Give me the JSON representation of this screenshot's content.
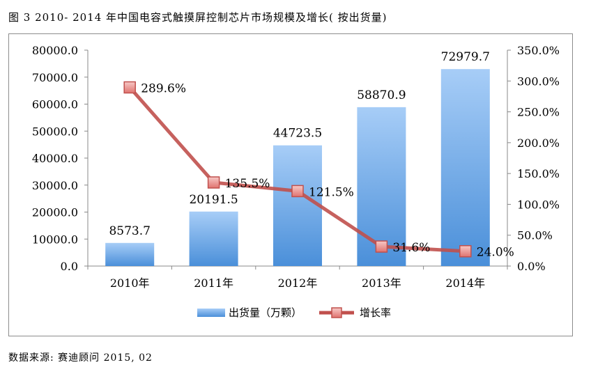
{
  "caption": "图 3   2010- 2014 年中国电容式触摸屏控制芯片市场规模及增长( 按出货量)",
  "source": "数据来源: 赛迪顾问 2015, 02",
  "chart_data": {
    "type": "bar+line",
    "categories": [
      "2010年",
      "2011年",
      "2012年",
      "2013年",
      "2014年"
    ],
    "series": [
      {
        "name": "出货量（万颗）",
        "type": "bar",
        "axis": "left",
        "values": [
          8573.7,
          20191.5,
          44723.5,
          58870.9,
          72979.7
        ],
        "labels": [
          "8573.7",
          "20191.5",
          "44723.5",
          "58870.9",
          "72979.7"
        ],
        "color": "#5b9bd5"
      },
      {
        "name": "增长率",
        "type": "line",
        "axis": "right",
        "values": [
          289.6,
          135.5,
          121.5,
          31.6,
          24.0
        ],
        "labels": [
          "289.6%",
          "135.5%",
          "121.5%",
          "31.6%",
          "24.0%"
        ],
        "color": "#c0504d"
      }
    ],
    "y_left": {
      "min": 0,
      "max": 80000,
      "step": 10000,
      "ticks": [
        "0.0",
        "10000.0",
        "20000.0",
        "30000.0",
        "40000.0",
        "50000.0",
        "60000.0",
        "70000.0",
        "80000.0"
      ]
    },
    "y_right": {
      "min": 0,
      "max": 350,
      "step": 50,
      "ticks": [
        "0.0%",
        "50.0%",
        "100.0%",
        "150.0%",
        "200.0%",
        "250.0%",
        "300.0%",
        "350.0%"
      ]
    },
    "grid": false,
    "legend": "bottom"
  }
}
